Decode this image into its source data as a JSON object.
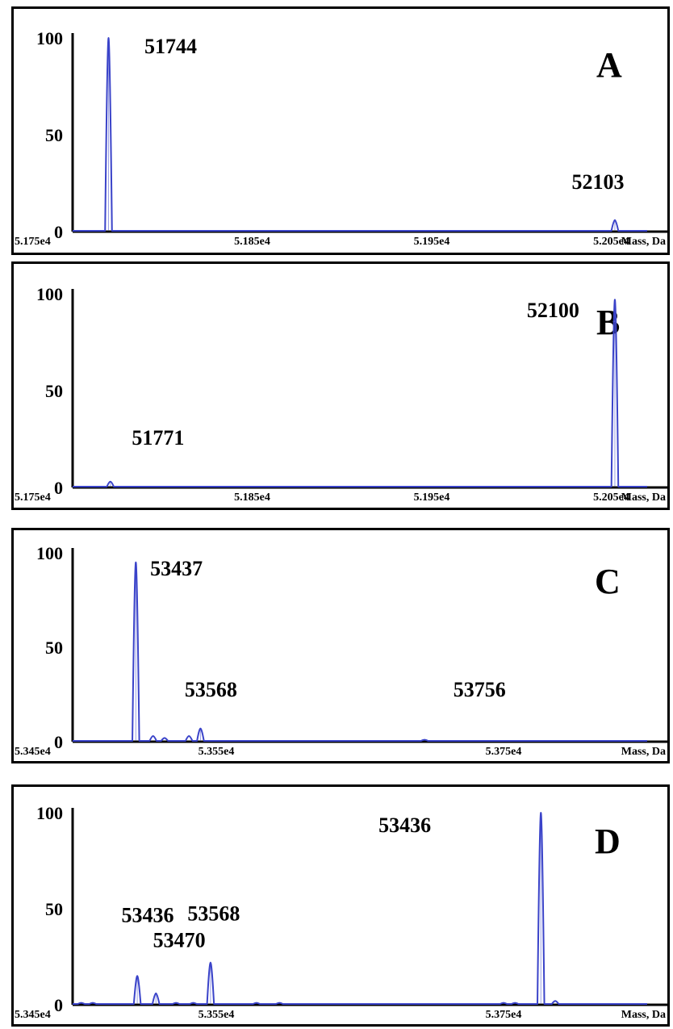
{
  "chart_data": [
    {
      "type": "line",
      "panel_label": "A",
      "yticks": [
        "100",
        "50",
        "0"
      ],
      "ylim": [
        0,
        100
      ],
      "xlim": [
        51750,
        52070
      ],
      "xticks": [
        {
          "value": 51750,
          "label": "5.175e4"
        },
        {
          "value": 51850,
          "label": "5.185e4"
        },
        {
          "value": 51950,
          "label": "5.195e4"
        },
        {
          "value": 52050,
          "label": "5.205e4"
        }
      ],
      "xlabel": "Mass, Da",
      "peaks": [
        {
          "x": 51744,
          "y": 100,
          "label": "51744",
          "plot_x": 51770
        },
        {
          "x": 52103,
          "y": 6,
          "label": "52103",
          "plot_x": 52052
        }
      ],
      "annotations": [
        {
          "text": "51744",
          "x": 51790,
          "y": 92
        },
        {
          "text": "52103",
          "x": 52028,
          "y": 22
        }
      ]
    },
    {
      "type": "line",
      "panel_label": "B",
      "yticks": [
        "100",
        "50",
        "0"
      ],
      "ylim": [
        0,
        100
      ],
      "xlim": [
        51750,
        52070
      ],
      "xticks": [
        {
          "value": 51750,
          "label": "5.175e4"
        },
        {
          "value": 51850,
          "label": "5.185e4"
        },
        {
          "value": 51950,
          "label": "5.195e4"
        },
        {
          "value": 52050,
          "label": "5.205e4"
        }
      ],
      "xlabel": "Mass, Da",
      "peaks": [
        {
          "x": 51771,
          "y": 3,
          "label": "51771",
          "plot_x": 51771
        },
        {
          "x": 52100,
          "y": 97,
          "label": "52100",
          "plot_x": 52052
        }
      ],
      "annotations": [
        {
          "text": "51771",
          "x": 51783,
          "y": 22
        },
        {
          "text": "52100",
          "x": 52003,
          "y": 88
        }
      ]
    },
    {
      "type": "line",
      "panel_label": "C",
      "yticks": [
        "100",
        "50",
        "0"
      ],
      "ylim": [
        0,
        100
      ],
      "xlim": [
        53450,
        53850
      ],
      "xticks": [
        {
          "value": 53450,
          "label": "5.345e4"
        },
        {
          "value": 53550,
          "label": "5.355e4"
        },
        {
          "value": 53750,
          "label": "5.375e4"
        }
      ],
      "xlabel": "Mass, Da",
      "peaks": [
        {
          "x": 53437,
          "y": 95,
          "label": "53437",
          "plot_x": 53494
        },
        {
          "x": 53568,
          "y": 7,
          "label": "53568",
          "plot_x": 53539
        }
      ],
      "minor_peaks": [
        {
          "x": 53506,
          "y": 3
        },
        {
          "x": 53514,
          "y": 2
        },
        {
          "x": 53531,
          "y": 3
        },
        {
          "x": 53695,
          "y": 1
        }
      ],
      "annotations": [
        {
          "text": "53437",
          "x": 53504,
          "y": 88
        },
        {
          "text": "53568",
          "x": 53528,
          "y": 24
        },
        {
          "text": "53756",
          "x": 53715,
          "y": 24
        }
      ]
    },
    {
      "type": "line",
      "panel_label": "D",
      "yticks": [
        "100",
        "50",
        "0"
      ],
      "ylim": [
        0,
        100
      ],
      "xlim": [
        53450,
        53850
      ],
      "xticks": [
        {
          "value": 53450,
          "label": "5.345e4"
        },
        {
          "value": 53550,
          "label": "5.355e4"
        },
        {
          "value": 53750,
          "label": "5.375e4"
        }
      ],
      "xlabel": "Mass, Da",
      "peaks": [
        {
          "x": 53436,
          "y": 15,
          "label": "53436",
          "plot_x": 53495
        },
        {
          "x": 53470,
          "y": 6,
          "label": "53470",
          "plot_x": 53508
        },
        {
          "x": 53568,
          "y": 22,
          "label": "53568",
          "plot_x": 53546
        },
        {
          "x": 53436,
          "y": 100,
          "label": "53436",
          "plot_x": 53776
        }
      ],
      "minor_peaks": [
        {
          "x": 53456,
          "y": 1
        },
        {
          "x": 53464,
          "y": 1
        },
        {
          "x": 53522,
          "y": 1
        },
        {
          "x": 53534,
          "y": 1
        },
        {
          "x": 53578,
          "y": 1
        },
        {
          "x": 53594,
          "y": 1
        },
        {
          "x": 53750,
          "y": 1
        },
        {
          "x": 53758,
          "y": 1
        },
        {
          "x": 53786,
          "y": 2
        }
      ],
      "annotations": [
        {
          "text": "53436",
          "x": 53484,
          "y": 43
        },
        {
          "text": "53470",
          "x": 53506,
          "y": 30
        },
        {
          "text": "53568",
          "x": 53530,
          "y": 44
        },
        {
          "text": "53436",
          "x": 53663,
          "y": 90
        }
      ]
    }
  ]
}
